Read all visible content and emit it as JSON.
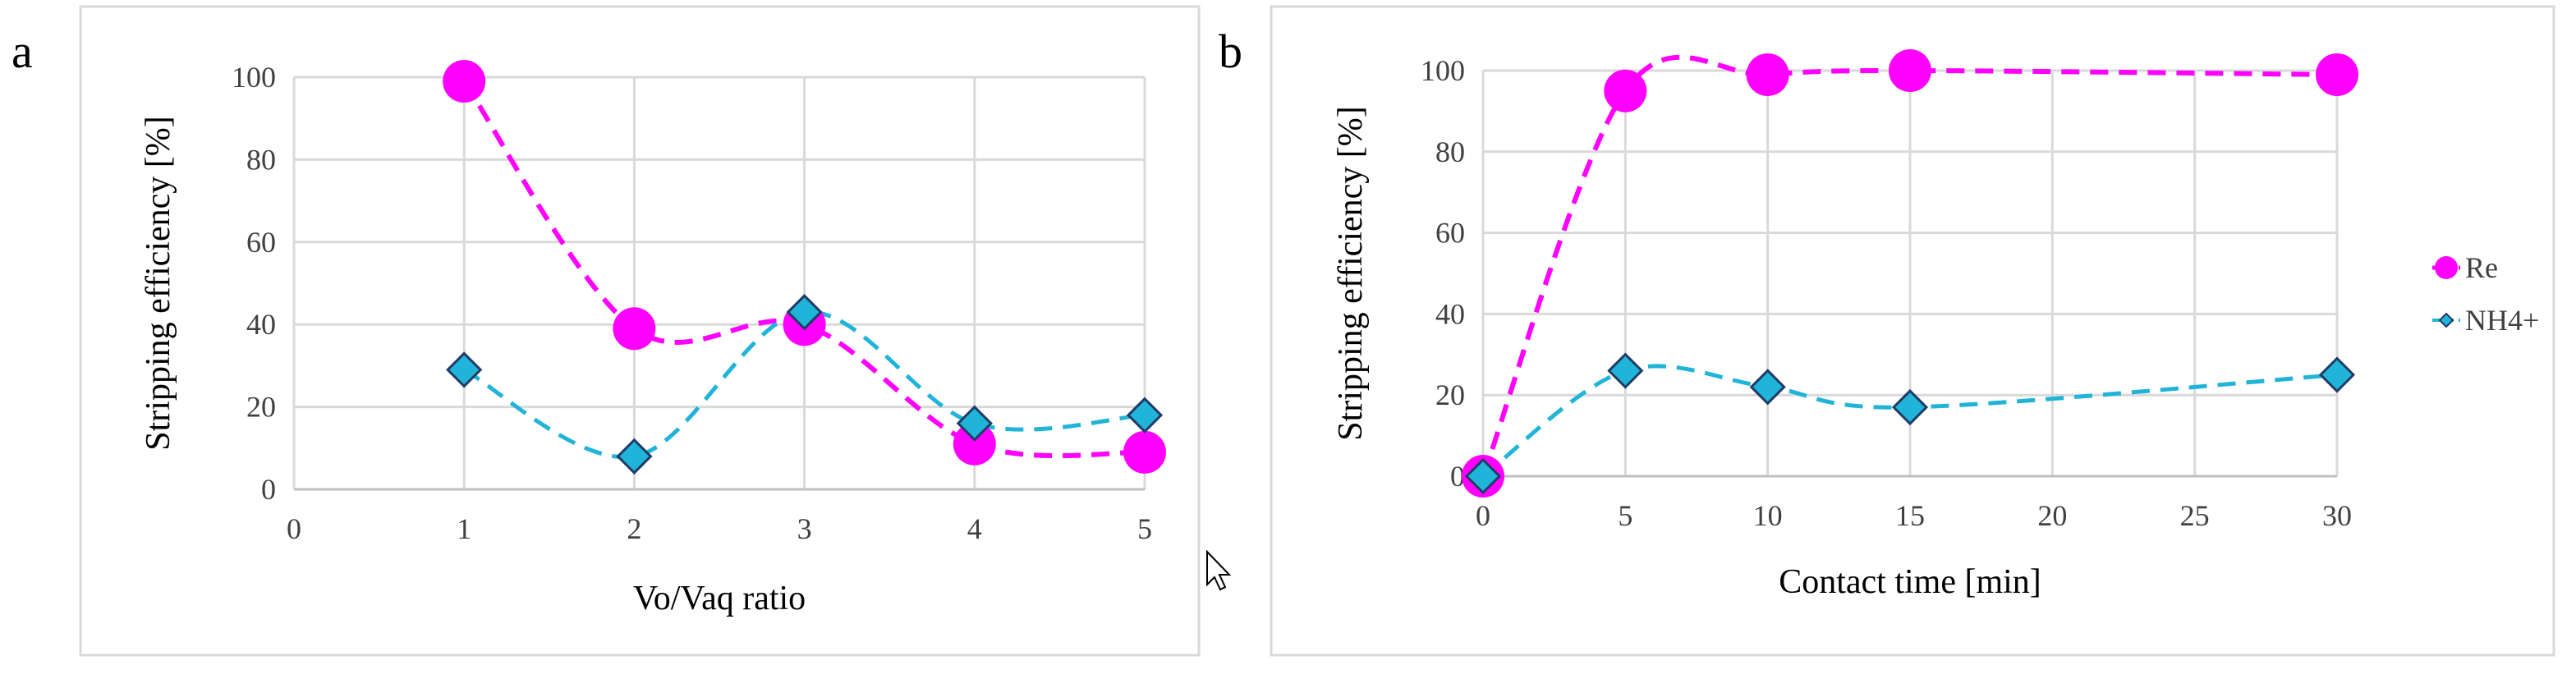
{
  "chart_data": [
    {
      "type": "line",
      "panel_label": "a",
      "xlabel": "Vo/Vaq ratio",
      "ylabel": "Stripping efficiency [%]",
      "xlim": [
        0,
        5
      ],
      "ylim": [
        0,
        100
      ],
      "x_ticks": [
        "0",
        "1",
        "2",
        "3",
        "4",
        "5"
      ],
      "y_ticks": [
        "0",
        "20",
        "40",
        "60",
        "80",
        "100"
      ],
      "grid": true,
      "series": [
        {
          "name": "Re",
          "color": "#ff00ff",
          "marker": "circle",
          "x": [
            1,
            2,
            3,
            4,
            5
          ],
          "values": [
            99,
            39,
            40,
            11,
            9
          ]
        },
        {
          "name": "NH4+",
          "color": "#1fb4d8",
          "marker": "diamond",
          "x": [
            1,
            2,
            3,
            4,
            5
          ],
          "values": [
            29,
            8,
            43,
            16,
            18
          ]
        }
      ]
    },
    {
      "type": "line",
      "panel_label": "b",
      "xlabel": "Contact time [min]",
      "ylabel": "Stripping efficiency [%]",
      "xlim": [
        0,
        30
      ],
      "ylim": [
        0,
        100
      ],
      "x_ticks": [
        "0",
        "5",
        "10",
        "15",
        "20",
        "25",
        "30"
      ],
      "y_ticks": [
        "0",
        "20",
        "40",
        "60",
        "80",
        "100"
      ],
      "grid": true,
      "legend_position": "right",
      "series": [
        {
          "name": "Re",
          "color": "#ff00ff",
          "marker": "circle",
          "x": [
            0,
            5,
            10,
            15,
            30
          ],
          "values": [
            0,
            95,
            99,
            100,
            99
          ]
        },
        {
          "name": "NH4+",
          "color": "#1fb4d8",
          "marker": "diamond",
          "x": [
            0,
            5,
            10,
            15,
            30
          ],
          "values": [
            0,
            26,
            22,
            17,
            25
          ]
        }
      ]
    }
  ]
}
